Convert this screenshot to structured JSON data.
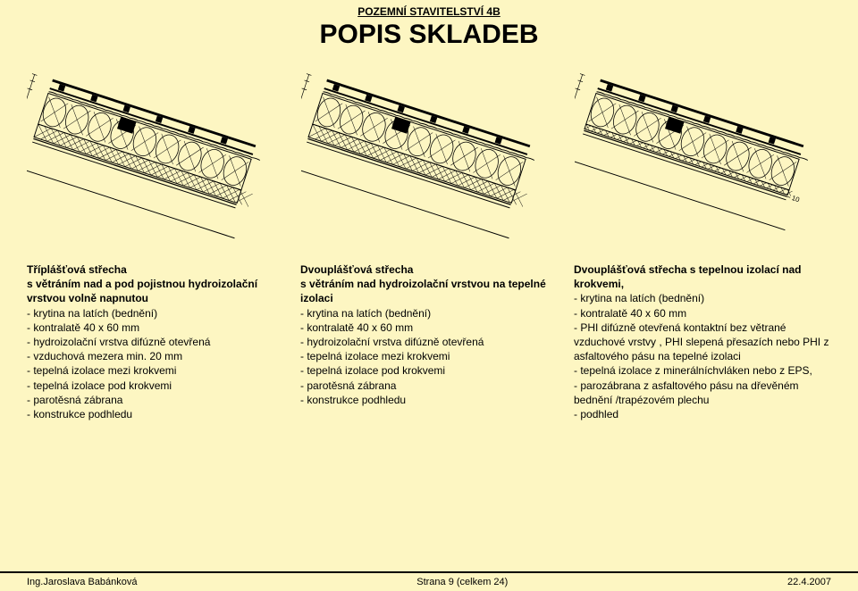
{
  "header": {
    "subtitle": "POZEMNÍ STAVITELSTVÍ 4B",
    "title": "POPIS SKLADEB"
  },
  "diagram": {
    "stroke": "#000000",
    "dims": [
      "30",
      "40",
      "160",
      "40",
      "10"
    ],
    "hatch_gap": 8,
    "coil_count": 9
  },
  "col1": {
    "title": "Tříplášťová střecha",
    "sub": "s větráním nad a pod pojistnou hydroizolační vrstvou volně napnutou",
    "items": [
      "krytina na latích (bednění)",
      "kontralatě 40 x 60 mm",
      "hydroizolační vrstva difúzně otevřená",
      "vzduchová mezera min. 20 mm",
      "tepelná izolace  mezi krokvemi",
      "tepelná izolace  pod krokvemi",
      "parotěsná zábrana",
      "konstrukce podhledu"
    ]
  },
  "col2": {
    "title": "Dvouplášťová střecha",
    "sub": "s větráním nad hydroizolační vrstvou na tepelné izolaci",
    "items": [
      "krytina na latích (bednění)",
      "kontralatě 40 x 60 mm",
      "hydroizolační vrstva difúzně otevřená",
      "tepelná izolace  mezi krokvemi",
      "tepelná izolace  pod krokvemi",
      "parotěsná zábrana",
      "konstrukce podhledu"
    ]
  },
  "col3": {
    "title": "Dvouplášťová střecha s tepelnou izolací nad krokvemi,",
    "sub": "",
    "items": [
      "krytina na latích (bednění)",
      "kontralatě 40 x 60 mm",
      "PHI difúzně otevřená kontaktní bez větrané vzduchové vrstvy , PHI slepená přesazích nebo PHI z asfaltového pásu na tepelné izolaci",
      "tepelná izolace z minerálníchvláken nebo z EPS,",
      "parozábrana z asfaltového pásu na dřevěném bednění /trapézovém plechu",
      "podhled"
    ]
  },
  "footer": {
    "left": "Ing.Jaroslava Babánková",
    "center": "Strana 9 (celkem 24)",
    "right": "22.4.2007"
  }
}
